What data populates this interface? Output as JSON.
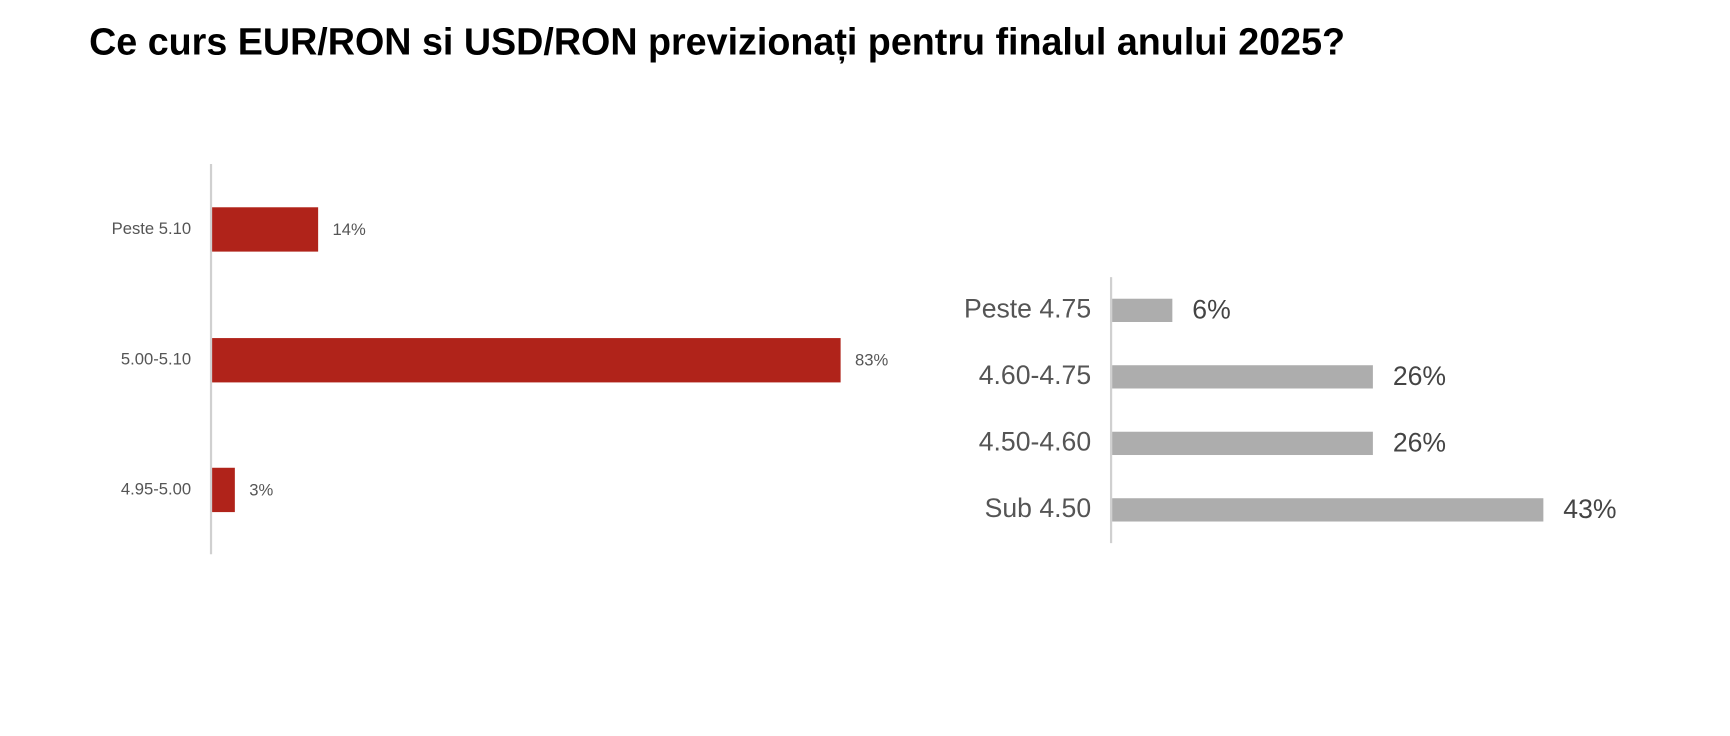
{
  "title": "Ce curs EUR/RON si USD/RON previzionați pentru finalul anului 2025?",
  "chart_data": [
    {
      "type": "bar",
      "orientation": "horizontal",
      "color": "#b0231a",
      "categories": [
        "Peste 5.10",
        "5.00-5.10",
        "4.95-5.00"
      ],
      "values": [
        14,
        83,
        3
      ],
      "value_labels": [
        "14%",
        "83%",
        "3%"
      ]
    },
    {
      "type": "bar",
      "orientation": "horizontal",
      "color": "#adadad",
      "categories": [
        "Peste 4.75",
        "4.60-4.75",
        "4.50-4.60",
        "Sub 4.50"
      ],
      "values": [
        6,
        26,
        26,
        43
      ],
      "value_labels": [
        "6%",
        "26%",
        "26%",
        "43%"
      ]
    }
  ]
}
